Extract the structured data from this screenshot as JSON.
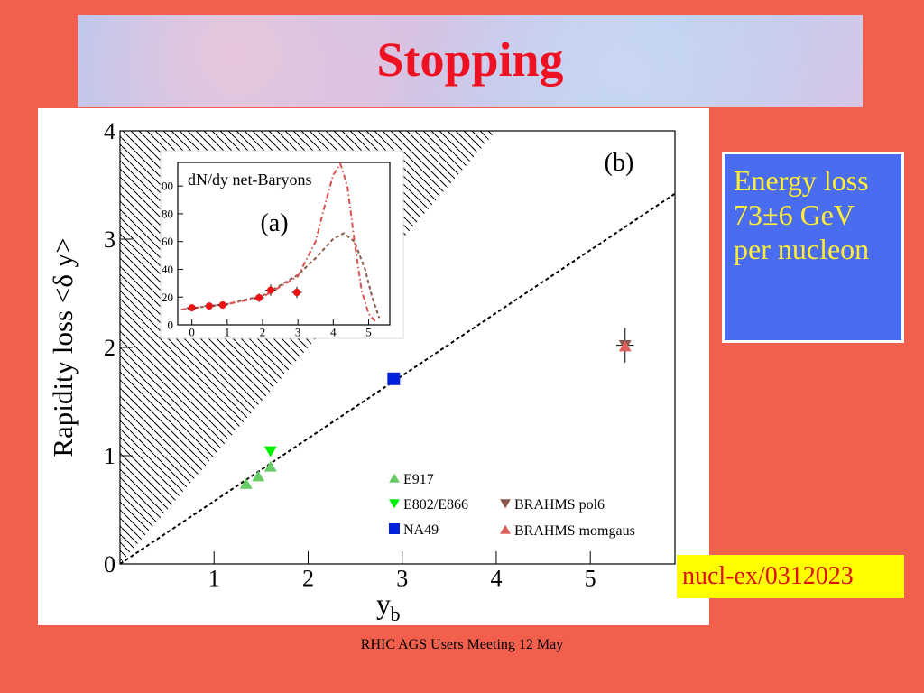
{
  "slide_title": "Stopping",
  "note_box": "Energy loss 73±6 GeV per nucleon",
  "reference": "nucl-ex/0312023",
  "footer": "RHIC AGS Users Meeting 12 May",
  "chart_data": [
    {
      "type": "scatter",
      "panel_label": "(b)",
      "ylabel": "Rapidity loss <δ y>",
      "xlabel": "y",
      "xlabel_sub": "b",
      "xlim": [
        0,
        5.9
      ],
      "ylim": [
        0,
        4
      ],
      "xticks": [
        1,
        2,
        3,
        4,
        5
      ],
      "yticks": [
        0,
        1,
        2,
        3,
        4
      ],
      "hatched_region": true,
      "series": [
        {
          "color": "#000000",
          "line_style": "dashed",
          "x": [
            0,
            5.9
          ],
          "values": [
            0,
            3.42
          ]
        },
        {
          "name": "E917",
          "color": "#66cc66",
          "marker": "^",
          "x": [
            1.34,
            1.47,
            1.6
          ],
          "values": [
            0.74,
            0.81,
            0.9
          ]
        },
        {
          "name": "E802/E866",
          "color": "#00ee00",
          "marker": "v",
          "x": [
            1.6
          ],
          "values": [
            1.04
          ]
        },
        {
          "name": "NA49",
          "color": "#0022dd",
          "marker": "s",
          "x": [
            2.91
          ],
          "values": [
            1.71
          ]
        },
        {
          "name": "BRAHMS pol6",
          "color": "#8b5a4a",
          "marker": "v",
          "x": [
            5.37
          ],
          "values": [
            2.02
          ],
          "errors": [
            0.16
          ]
        },
        {
          "name": "BRAHMS momgaus",
          "color": "#e06060",
          "marker": "^",
          "x": [
            5.37
          ],
          "values": [
            2.01
          ]
        }
      ]
    },
    {
      "type": "scatter",
      "title": "dN/dy net-Baryons",
      "panel_label": "(a)",
      "xlim": [
        -0.4,
        5.6
      ],
      "ylim": [
        0,
        117
      ],
      "xticks": [
        0,
        1,
        2,
        3,
        4,
        5
      ],
      "yticks": [
        0,
        20,
        40,
        60,
        80,
        {
          "value": 100,
          "label": "00"
        }
      ],
      "series": [
        {
          "color": "#8b5a4a",
          "line_style": "dashed",
          "x": [
            -0.3,
            0,
            1,
            2,
            3,
            3.5,
            4,
            4.3,
            4.6,
            4.9,
            5.1,
            5.3
          ],
          "values": [
            11,
            12,
            15,
            21,
            36,
            48,
            62,
            66,
            60,
            40,
            20,
            5
          ]
        },
        {
          "color": "#e05050",
          "line_style": "dashdot",
          "x": [
            -0.3,
            0,
            1,
            2,
            3,
            3.5,
            3.8,
            4.0,
            4.2,
            4.4,
            4.6,
            4.8,
            5.0,
            5.2
          ],
          "values": [
            11,
            12,
            15,
            20,
            35,
            60,
            90,
            108,
            116,
            100,
            60,
            25,
            8,
            2
          ]
        },
        {
          "color": "#ee1111",
          "marker": "o",
          "x": [
            0,
            0.49,
            0.87,
            1.9,
            2.23,
            2.97
          ],
          "values": [
            12.3,
            13.6,
            14.3,
            19.5,
            25,
            23.4
          ],
          "errors": [
            2,
            2,
            2,
            3,
            4,
            4
          ]
        }
      ]
    }
  ]
}
